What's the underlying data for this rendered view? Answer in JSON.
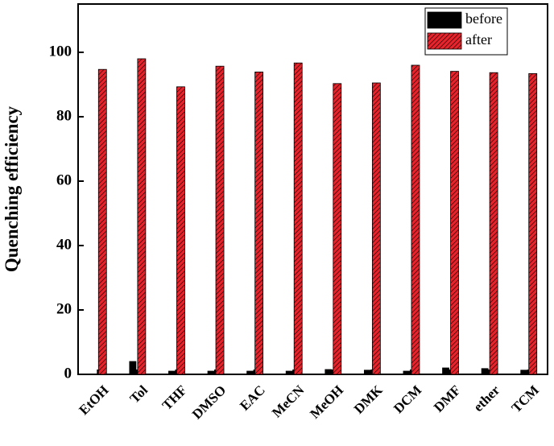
{
  "chart_data": {
    "type": "bar",
    "y_label": "Quenching efficiency",
    "categories": [
      "EtOH",
      "Tol",
      "THF",
      "DMSO",
      "EAC",
      "MeCN",
      "MeOH",
      "DMK",
      "DCM",
      "DMF",
      "ether",
      "TCM"
    ],
    "series": [
      {
        "name": "before",
        "color": "#000000",
        "values": [
          0,
          4,
          1,
          1,
          1,
          1,
          1.5,
          1.3,
          1,
          2,
          1.8,
          1.3
        ]
      },
      {
        "name": "after",
        "color": "#e8232b",
        "values": [
          94.7,
          98,
          89.3,
          95.7,
          93.9,
          96.7,
          90.3,
          90.5,
          96,
          94.1,
          93.7,
          93.4
        ]
      }
    ],
    "ylim": [
      0,
      115
    ],
    "yticks": [
      0,
      20,
      40,
      60,
      80,
      100
    ],
    "legend": "upper right"
  }
}
